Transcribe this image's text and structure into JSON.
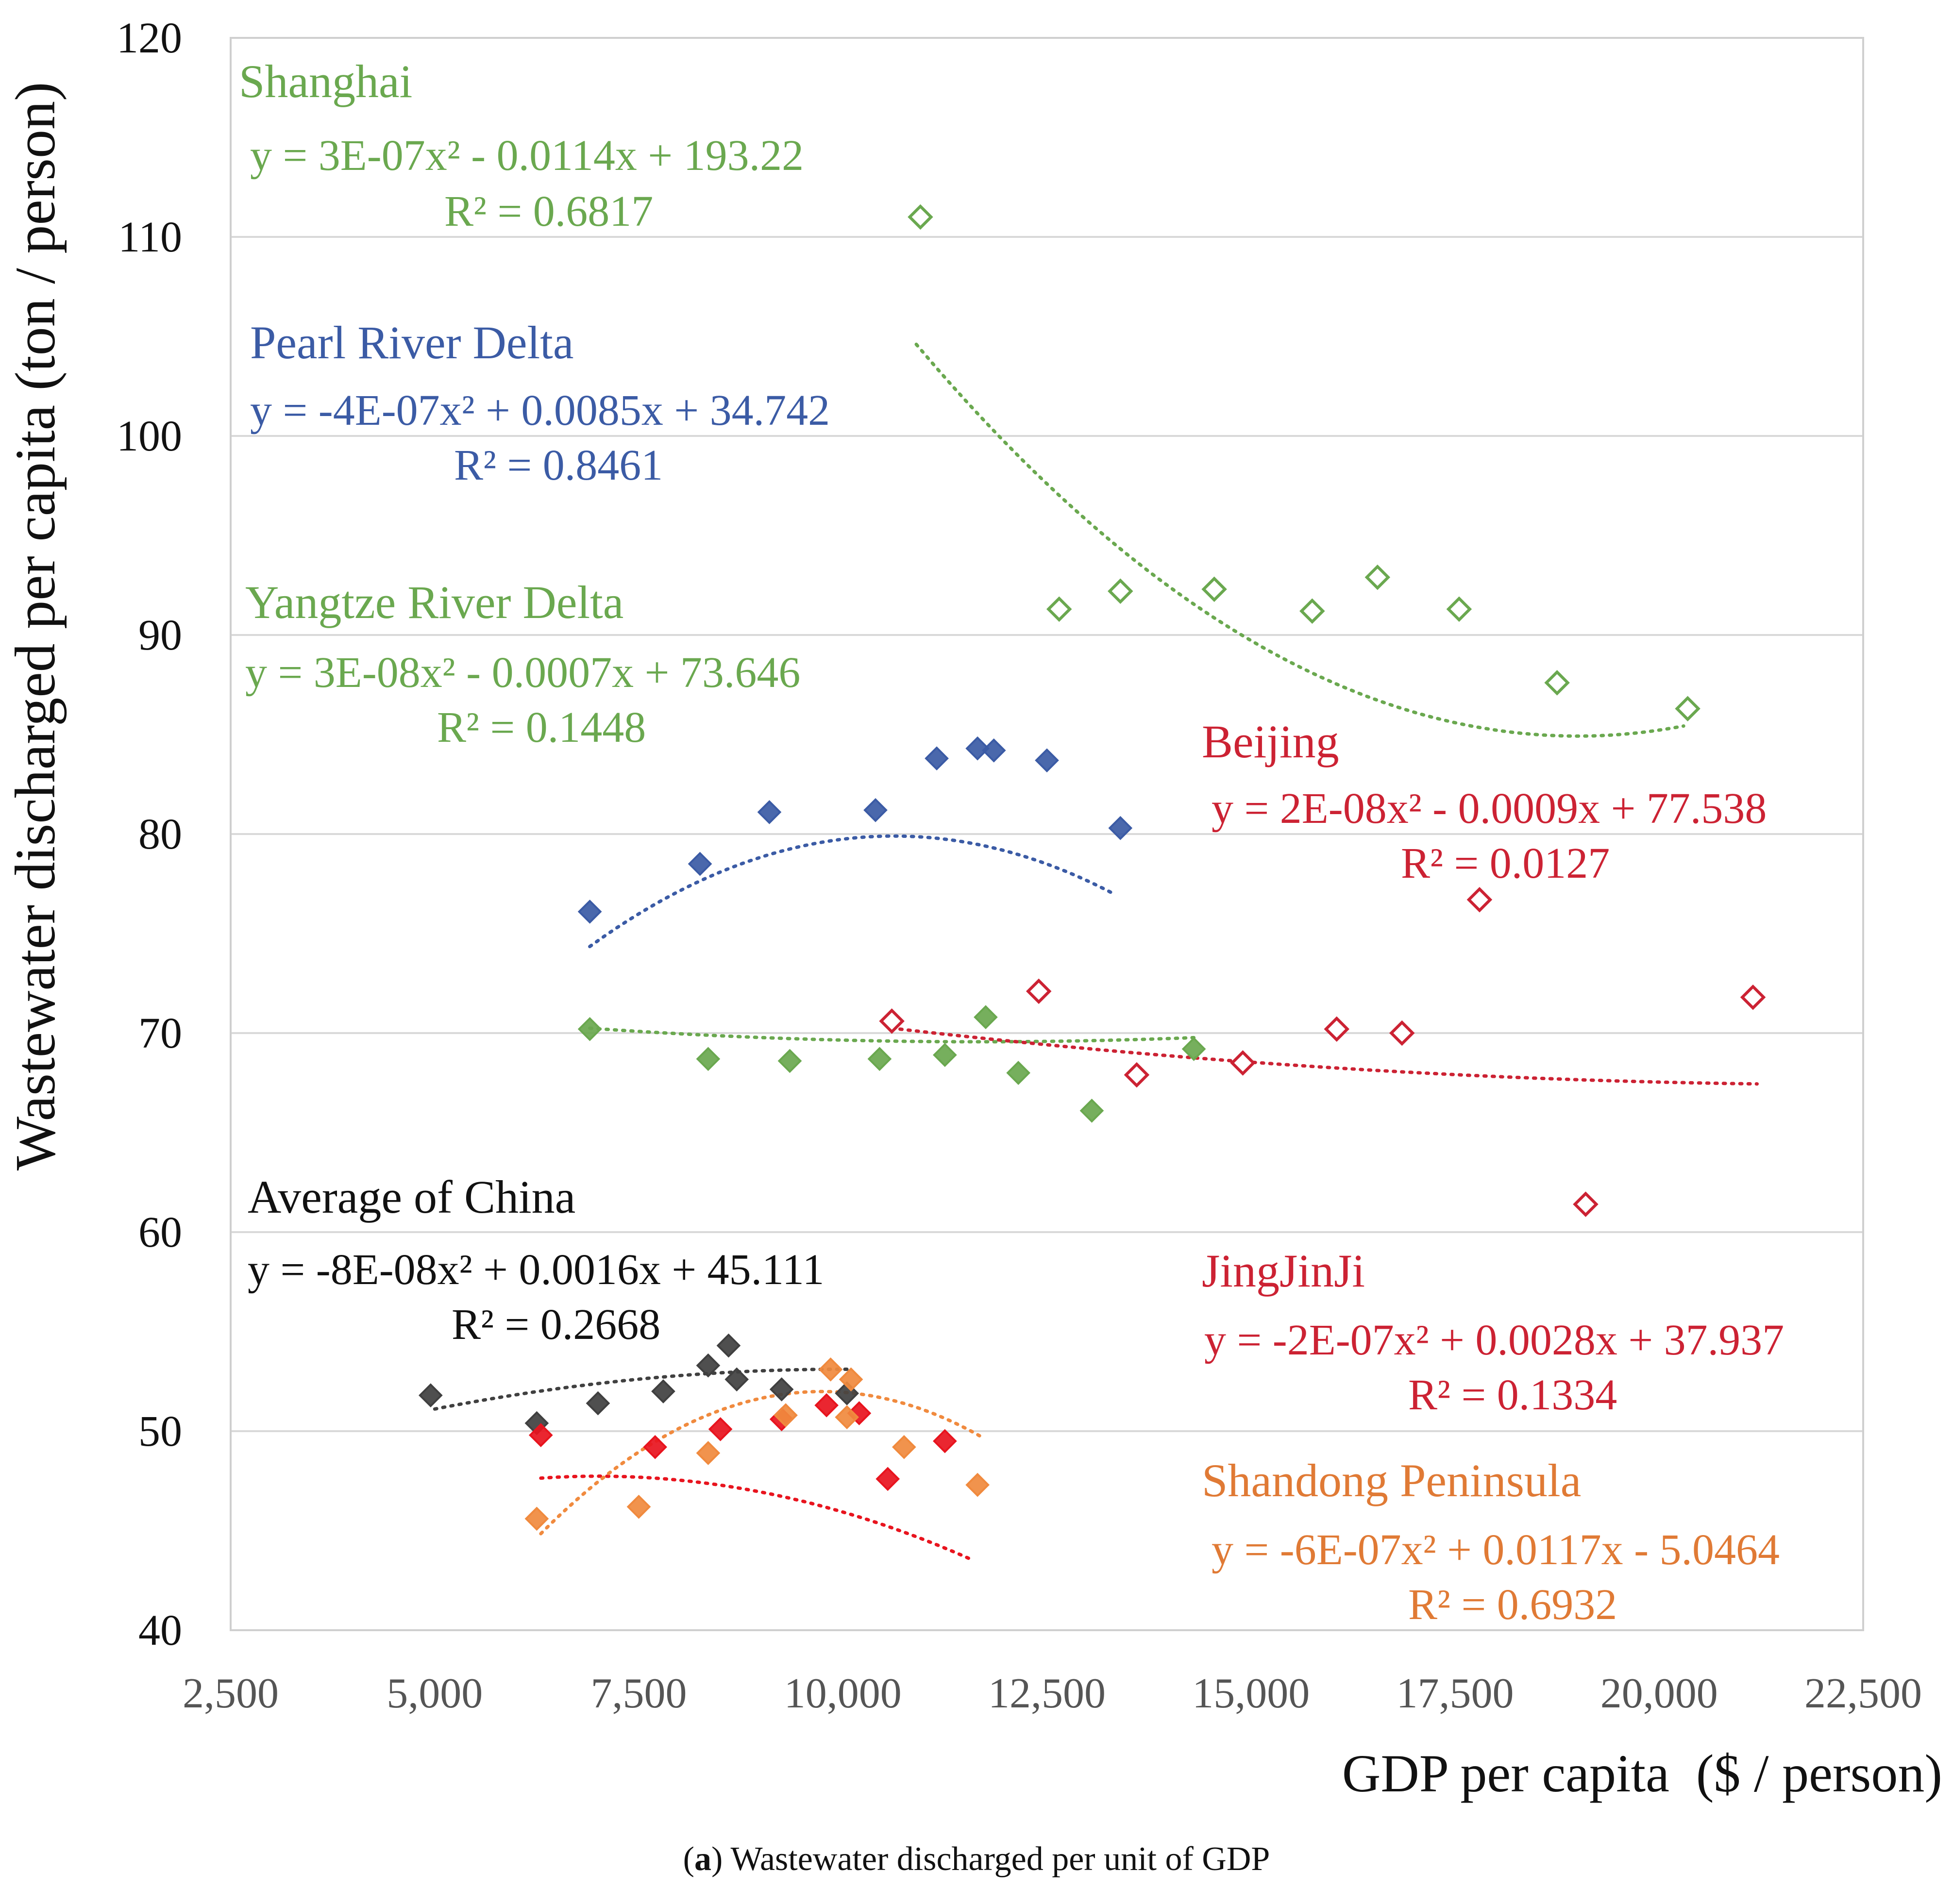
{
  "caption": {
    "label": "a",
    "text": "Wastewater discharged per unit of GDP"
  },
  "chart_data": {
    "type": "scatter",
    "title": "",
    "xlabel": "GDP per capita  ($ / person)",
    "ylabel": "Wastewater discharged per capita (ton / person)",
    "xlim": [
      2500,
      22500
    ],
    "ylim": [
      40,
      120
    ],
    "x_ticks": [
      2500,
      5000,
      7500,
      10000,
      12500,
      15000,
      17500,
      20000,
      22500
    ],
    "x_tick_labels": [
      "2,500",
      "5,000",
      "7,500",
      "10,000",
      "12,500",
      "15,000",
      "17,500",
      "20,000",
      "22,500"
    ],
    "y_ticks": [
      40,
      50,
      60,
      70,
      80,
      90,
      100,
      110,
      120
    ],
    "y_tick_labels": [
      "40",
      "50",
      "60",
      "70",
      "80",
      "90",
      "100",
      "110",
      "120"
    ],
    "grid": "horizontal",
    "series": [
      {
        "name": "Shanghai",
        "color": "#6aa84f",
        "marker": "hollow-diamond",
        "trend": {
          "a": 3e-07,
          "b": -0.0114,
          "c": 193.22,
          "x_range": [
            10900,
            20300
          ]
        },
        "equation": "y = 3E-07x² - 0.0114x + 193.22",
        "r2": "R² = 0.6817",
        "points": [
          [
            10950,
            111.0
          ],
          [
            12650,
            91.3
          ],
          [
            13400,
            92.2
          ],
          [
            14550,
            92.3
          ],
          [
            15750,
            91.2
          ],
          [
            16550,
            92.9
          ],
          [
            17550,
            91.3
          ],
          [
            18750,
            87.6
          ],
          [
            20350,
            86.3
          ]
        ]
      },
      {
        "name": "Pearl River Delta",
        "color": "#3b5ba5",
        "marker": "filled-diamond",
        "trend": {
          "a": -4e-07,
          "b": 0.0085,
          "c": 34.742,
          "x_range": [
            6900,
            13300
          ]
        },
        "equation": "y = -4E-07x² + 0.0085x + 34.742",
        "r2": "R² = 0.8461",
        "points": [
          [
            6900,
            76.1
          ],
          [
            8250,
            78.5
          ],
          [
            9100,
            81.1
          ],
          [
            10400,
            81.2
          ],
          [
            11150,
            83.8
          ],
          [
            11650,
            84.3
          ],
          [
            11850,
            84.2
          ],
          [
            12500,
            83.7
          ],
          [
            13400,
            80.3
          ]
        ]
      },
      {
        "name": "Yangtze River Delta",
        "color": "#6aa84f",
        "marker": "filled-diamond",
        "trend": {
          "a": 3e-08,
          "b": -0.0007,
          "c": 73.646,
          "x_range": [
            6900,
            14300
          ]
        },
        "equation": "y = 3E-08x² - 0.0007x + 73.646",
        "r2": "R² = 0.1448",
        "points": [
          [
            6900,
            70.2
          ],
          [
            8350,
            68.7
          ],
          [
            9350,
            68.6
          ],
          [
            10450,
            68.7
          ],
          [
            11250,
            68.9
          ],
          [
            11750,
            70.8
          ],
          [
            12150,
            68.0
          ],
          [
            13050,
            66.1
          ],
          [
            14300,
            69.2
          ]
        ]
      },
      {
        "name": "Beijing",
        "color": "#cc2233",
        "marker": "hollow-diamond",
        "trend": {
          "a": 2e-08,
          "b": -0.0009,
          "c": 77.538,
          "x_range": [
            10600,
            21200
          ]
        },
        "equation": "y = 2E-08x² - 0.0009x + 77.538",
        "r2": "R² = 0.0127",
        "points": [
          [
            10600,
            70.6
          ],
          [
            12400,
            72.1
          ],
          [
            13600,
            67.9
          ],
          [
            14900,
            68.5
          ],
          [
            16050,
            70.2
          ],
          [
            16850,
            70.0
          ],
          [
            17800,
            76.7
          ],
          [
            19100,
            61.4
          ],
          [
            21150,
            71.8
          ]
        ]
      },
      {
        "name": "Average of China",
        "color": "#404040",
        "marker": "filled-diamond",
        "trend": {
          "a": -8e-08,
          "b": 0.0016,
          "c": 45.111,
          "x_range": [
            5000,
            10100
          ]
        },
        "equation": "y = -8E-08x² + 0.0016x + 45.111",
        "r2": "R² = 0.2668",
        "points": [
          [
            4950,
            51.8
          ],
          [
            6250,
            50.4
          ],
          [
            7000,
            51.4
          ],
          [
            7800,
            52.0
          ],
          [
            8350,
            53.3
          ],
          [
            8600,
            54.3
          ],
          [
            8700,
            52.6
          ],
          [
            9250,
            52.1
          ],
          [
            10050,
            51.9
          ]
        ]
      },
      {
        "name": "JingJinJi",
        "color": "#e8141e",
        "marker": "filled-diamond",
        "trend": {
          "a": -2e-07,
          "b": 0.0028,
          "c": 37.937,
          "x_range": [
            6300,
            11600
          ]
        },
        "equation": "y = -2E-07x² + 0.0028x + 37.937",
        "r2": "R² = 0.1334",
        "points": [
          [
            6300,
            49.8
          ],
          [
            7700,
            49.2
          ],
          [
            8500,
            50.1
          ],
          [
            9250,
            50.6
          ],
          [
            9800,
            51.3
          ],
          [
            10200,
            50.9
          ],
          [
            10550,
            47.6
          ],
          [
            11250,
            49.5
          ]
        ]
      },
      {
        "name": "Shandong Peninsula",
        "color": "#f08a3e",
        "marker": "filled-diamond",
        "trend": {
          "a": -6e-07,
          "b": 0.0117,
          "c": -5.0464,
          "x_range": [
            6300,
            11700
          ]
        },
        "equation": "y = -6E-07x² + 0.0117x - 5.0464",
        "r2": "R² = 0.6932",
        "points": [
          [
            6250,
            45.6
          ],
          [
            7500,
            46.2
          ],
          [
            8350,
            48.9
          ],
          [
            9300,
            50.8
          ],
          [
            9850,
            53.1
          ],
          [
            10100,
            52.6
          ],
          [
            10050,
            50.7
          ],
          [
            10750,
            49.2
          ],
          [
            11650,
            47.3
          ]
        ]
      }
    ]
  }
}
